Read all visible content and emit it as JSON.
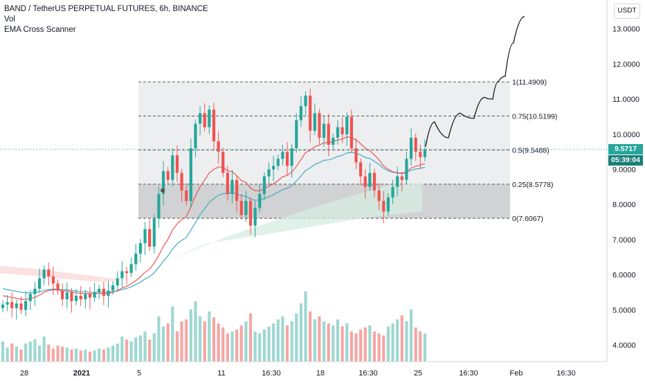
{
  "legend": {
    "title": "BAND / TetherUS PERPETUAL FUTURES, 6h, BINANCE",
    "line2": "Vol",
    "line3": "EMA Cross Scanner"
  },
  "currency_button": "USDT",
  "last_price_tag": "9.5717",
  "countdown_tag": "05:39:04",
  "colors": {
    "up": "#26a69a",
    "down": "#ef5350",
    "ema_fast": "#ef5350",
    "ema_slow": "#3fa9c5",
    "fib_top": "#e7e8eb",
    "fib_bottom": "#c9cacd",
    "price_tag": "#26a69a",
    "countdown_tag": "#1a7e78"
  },
  "chart_data": {
    "type": "candlestick",
    "title": "BAND / TetherUS PERPETUAL FUTURES, 6h, BINANCE",
    "ylim": [
      3.4,
      13.6
    ],
    "y_ticks": [
      "13.0000",
      "12.0000",
      "11.0000",
      "10.0000",
      "9.0000",
      "8.0000",
      "7.0000",
      "6.0000",
      "5.0000",
      "4.0000"
    ],
    "x_ticks": [
      "28",
      "2021",
      "5",
      "11",
      "16:30",
      "18",
      "16:30",
      "25",
      "16:30",
      "Feb",
      "16:30"
    ],
    "closes": [
      5.15,
      5.22,
      5.05,
      5.18,
      5.0,
      5.25,
      5.45,
      5.6,
      5.9,
      6.15,
      5.95,
      5.75,
      5.55,
      5.3,
      5.5,
      5.25,
      5.4,
      5.3,
      5.45,
      5.35,
      5.5,
      5.6,
      5.4,
      5.55,
      5.7,
      5.9,
      6.1,
      6.05,
      6.3,
      6.6,
      6.9,
      7.3,
      6.8,
      7.6,
      8.3,
      8.95,
      8.7,
      9.4,
      8.9,
      8.4,
      8.1,
      9.6,
      10.3,
      10.6,
      10.2,
      10.7,
      9.8,
      9.5,
      8.9,
      8.3,
      8.7,
      8.1,
      7.7,
      8.1,
      7.4,
      7.9,
      8.3,
      8.8,
      9.0,
      9.1,
      9.3,
      9.5,
      9.1,
      9.6,
      10.4,
      10.8,
      11.1,
      10.1,
      10.6,
      9.9,
      10.3,
      9.7,
      9.9,
      10.2,
      10.0,
      10.5,
      9.6,
      9.2,
      8.8,
      8.5,
      8.9,
      8.4,
      8.1,
      7.8,
      8.2,
      8.5,
      8.8,
      8.7,
      9.3,
      9.9,
      9.5,
      9.35,
      9.57
    ],
    "volume_ylim": [
      0,
      100
    ],
    "volumes": [
      20,
      14,
      18,
      15,
      12,
      18,
      20,
      22,
      16,
      25,
      17,
      13,
      16,
      15,
      14,
      12,
      13,
      11,
      12,
      10,
      11,
      13,
      12,
      14,
      16,
      18,
      25,
      22,
      20,
      24,
      26,
      30,
      22,
      28,
      45,
      35,
      38,
      55,
      30,
      40,
      42,
      52,
      60,
      45,
      40,
      50,
      44,
      38,
      34,
      28,
      30,
      32,
      36,
      40,
      48,
      30,
      28,
      32,
      35,
      38,
      42,
      45,
      36,
      40,
      48,
      58,
      70,
      50,
      42,
      45,
      40,
      38,
      36,
      42,
      35,
      38,
      30,
      28,
      32,
      34,
      36,
      30,
      28,
      26,
      35,
      38,
      42,
      46,
      40,
      52,
      34,
      30,
      28
    ],
    "ema_fast": [
      5.4,
      5.38,
      5.35,
      5.33,
      5.3,
      5.3,
      5.32,
      5.36,
      5.42,
      5.5,
      5.55,
      5.57,
      5.57,
      5.54,
      5.54,
      5.51,
      5.49,
      5.47,
      5.47,
      5.45,
      5.46,
      5.47,
      5.46,
      5.47,
      5.5,
      5.55,
      5.62,
      5.67,
      5.74,
      5.83,
      5.94,
      6.07,
      6.16,
      6.33,
      6.55,
      6.81,
      7.01,
      7.27,
      7.45,
      7.57,
      7.65,
      7.94,
      8.24,
      8.51,
      8.7,
      8.9,
      9.0,
      9.07,
      9.06,
      8.96,
      8.94,
      8.82,
      8.68,
      8.63,
      8.47,
      8.39,
      8.39,
      8.45,
      8.52,
      8.59,
      8.68,
      8.79,
      8.83,
      8.92,
      9.09,
      9.28,
      9.48,
      9.54,
      9.65,
      9.69,
      9.76,
      9.76,
      9.79,
      9.84,
      9.86,
      9.93,
      9.9,
      9.84,
      9.73,
      9.6,
      9.53,
      9.41,
      9.27,
      9.1,
      9.0,
      8.93,
      8.91,
      8.89,
      8.93,
      9.04,
      9.09,
      9.12,
      9.17
    ],
    "ema_slow": [
      5.6,
      5.58,
      5.55,
      5.53,
      5.5,
      5.49,
      5.48,
      5.49,
      5.52,
      5.55,
      5.58,
      5.59,
      5.59,
      5.57,
      5.57,
      5.55,
      5.54,
      5.52,
      5.52,
      5.5,
      5.5,
      5.51,
      5.5,
      5.5,
      5.52,
      5.54,
      5.58,
      5.61,
      5.66,
      5.72,
      5.79,
      5.88,
      5.94,
      6.06,
      6.21,
      6.39,
      6.54,
      6.73,
      6.88,
      6.98,
      7.06,
      7.27,
      7.49,
      7.71,
      7.88,
      8.06,
      8.17,
      8.26,
      8.31,
      8.31,
      8.33,
      8.3,
      8.25,
      8.24,
      8.15,
      8.12,
      8.13,
      8.17,
      8.22,
      8.28,
      8.35,
      8.42,
      8.46,
      8.54,
      8.67,
      8.81,
      8.97,
      9.04,
      9.14,
      9.19,
      9.26,
      9.27,
      9.31,
      9.37,
      9.4,
      9.47,
      9.48,
      9.46,
      9.41,
      9.34,
      9.31,
      9.23,
      9.14,
      9.03,
      8.96,
      8.92,
      8.9,
      8.88,
      8.91,
      8.98,
      9.01,
      9.03,
      9.06
    ],
    "fib_levels": [
      {
        "label": "1(11.4909)",
        "value": 11.4909
      },
      {
        "label": "0.75(10.5199)",
        "value": 10.5199
      },
      {
        "label": "0.5(9.5488)",
        "value": 9.5488
      },
      {
        "label": "0.25(8.5778)",
        "value": 8.5778
      },
      {
        "label": "0(7.6067)",
        "value": 7.6067
      }
    ],
    "projection": [
      [
        9.65,
        10.3
      ],
      [
        9.85,
        9.95
      ],
      [
        10.4,
        10.7
      ],
      [
        10.5,
        10.5
      ],
      [
        10.9,
        11.1
      ],
      [
        11.0,
        11.0
      ],
      [
        11.4,
        11.5
      ],
      [
        11.6,
        11.7
      ],
      [
        12.5,
        12.9
      ],
      [
        13.3,
        13.3
      ]
    ],
    "grid": false
  }
}
